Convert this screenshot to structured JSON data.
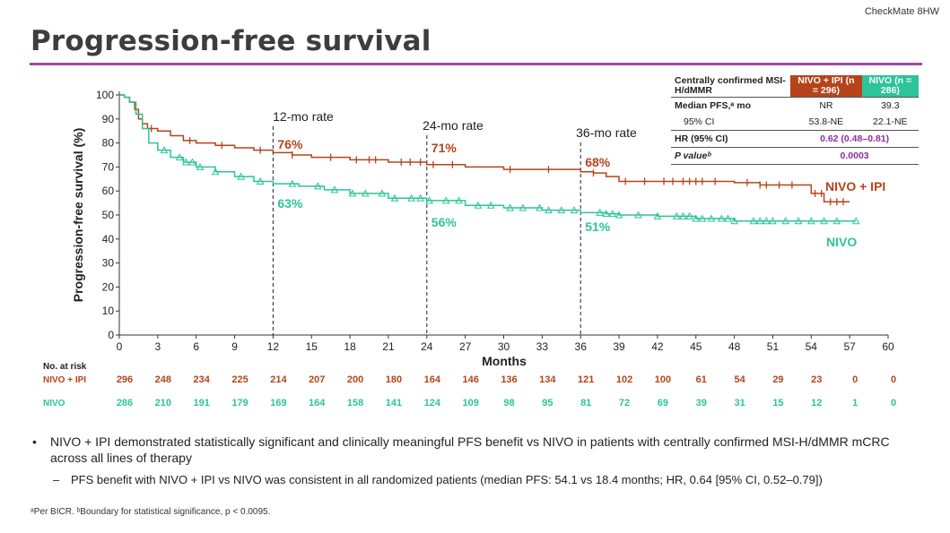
{
  "header": {
    "study_label": "CheckMate 8HW",
    "title": "Progression-free survival"
  },
  "colors": {
    "nivo_ipi": "#b5441a",
    "nivo": "#2cc49a",
    "accent": "#a04aa6",
    "stat_value": "#8d2fa0"
  },
  "stats_table": {
    "header_label": "Centrally confirmed MSI-H/dMMR",
    "col_nivo_ipi": "NIVO + IPI (n = 296)",
    "col_nivo": "NIVO (n = 286)",
    "median_label": "Median PFS,ᵃ mo",
    "median_nivo_ipi": "NR",
    "median_nivo": "39.3",
    "ci_label": "95% CI",
    "ci_nivo_ipi": "53.8-NE",
    "ci_nivo": "22.1-NE",
    "hr_label": "HR (95% CI)",
    "hr_value": "0.62 (0.48–0.81)",
    "p_label": "P valueᵇ",
    "p_value": "0.0003"
  },
  "chart_data": {
    "type": "line",
    "ylabel": "Progression-free survival (%)",
    "xlabel": "Months",
    "xlim": [
      0,
      60
    ],
    "ylim": [
      0,
      100
    ],
    "xticks": [
      0,
      3,
      6,
      9,
      12,
      15,
      18,
      21,
      24,
      27,
      30,
      33,
      36,
      39,
      42,
      45,
      48,
      51,
      54,
      57,
      60
    ],
    "yticks": [
      0,
      10,
      20,
      30,
      40,
      50,
      60,
      70,
      80,
      90,
      100
    ],
    "series": [
      {
        "name": "NIVO + IPI",
        "color": "#b5441a",
        "marker": "tick",
        "x": [
          0,
          0.4,
          0.8,
          1.2,
          1.5,
          1.8,
          2.2,
          3,
          4,
          5,
          6,
          7.5,
          9,
          10.5,
          12,
          13.5,
          15,
          18,
          21,
          24,
          27,
          30,
          33,
          36,
          37,
          38,
          39,
          42,
          45,
          48,
          50,
          53,
          54,
          55,
          57
        ],
        "y": [
          100,
          99,
          97,
          94,
          90,
          88,
          86,
          85,
          83,
          81,
          80,
          79,
          78,
          77,
          76,
          75,
          74,
          73,
          72,
          71,
          70,
          69,
          69,
          68,
          67.5,
          66,
          64,
          64,
          64,
          63.5,
          62.5,
          62.5,
          59,
          55.5,
          55.5
        ],
        "censor_x": [
          2.5,
          5.5,
          8,
          11,
          13.5,
          16.5,
          18.5,
          19.5,
          20,
          22,
          22.7,
          23.5,
          24.5,
          26,
          30.5,
          33.5,
          37,
          39.5,
          41,
          42.5,
          43.2,
          44,
          44.5,
          45,
          45.5,
          46.5,
          49,
          50,
          50.5,
          51.5,
          52.5,
          54.3,
          54.8,
          55.5,
          56,
          56.5
        ]
      },
      {
        "name": "NIVO",
        "color": "#2cc49a",
        "marker": "triangle",
        "x": [
          0,
          0.4,
          0.8,
          1.3,
          1.8,
          2.3,
          3,
          4,
          5,
          6,
          7.5,
          9,
          10.5,
          12,
          14,
          16,
          18,
          21,
          24,
          27,
          30,
          33,
          36,
          38,
          39,
          42,
          45,
          48,
          51,
          54,
          57.5
        ],
        "y": [
          100,
          99,
          97,
          92,
          86,
          80,
          77,
          74,
          72,
          70,
          68,
          66,
          64,
          63,
          62,
          60.5,
          59,
          57,
          56,
          54,
          53,
          52,
          51,
          50.5,
          50,
          49.5,
          48.5,
          47.5,
          47.5,
          47.5,
          47.5
        ],
        "censor_x": [
          3.5,
          4.7,
          5.2,
          5.7,
          6.3,
          7.5,
          9.5,
          11,
          13.5,
          15.5,
          16.8,
          18.2,
          19.2,
          20.5,
          21.5,
          22.8,
          23.5,
          24.2,
          25.5,
          26.5,
          28,
          29,
          30.5,
          31.5,
          32.8,
          33.5,
          34.5,
          35.5,
          37.5,
          38,
          38.5,
          39,
          40.5,
          42,
          43.5,
          44,
          44.5,
          45,
          45.5,
          46.2,
          47,
          47.5,
          48,
          49.5,
          50,
          50.5,
          51,
          52,
          53,
          54,
          55,
          56,
          57.5
        ]
      }
    ],
    "annotations": [
      {
        "x": 12,
        "label": "12-mo rate",
        "nivo_ipi": "76%",
        "nivo": "63%"
      },
      {
        "x": 24,
        "label": "24-mo rate",
        "nivo_ipi": "71%",
        "nivo": "56%"
      },
      {
        "x": 36,
        "label": "36-mo rate",
        "nivo_ipi": "68%",
        "nivo": "51%"
      }
    ],
    "series_labels": {
      "nivo_ipi": "NIVO + IPI",
      "nivo": "NIVO"
    },
    "at_risk": {
      "title": "No. at risk",
      "rows": [
        {
          "name": "NIVO + IPI",
          "values": [
            "296",
            "248",
            "234",
            "225",
            "214",
            "207",
            "200",
            "180",
            "164",
            "146",
            "136",
            "134",
            "121",
            "102",
            "100",
            "61",
            "54",
            "29",
            "23",
            "0",
            "0"
          ]
        },
        {
          "name": "NIVO",
          "values": [
            "286",
            "210",
            "191",
            "179",
            "169",
            "164",
            "158",
            "141",
            "124",
            "109",
            "98",
            "95",
            "81",
            "72",
            "69",
            "39",
            "31",
            "15",
            "12",
            "1",
            "0"
          ]
        }
      ]
    }
  },
  "bullets": {
    "main": "NIVO + IPI demonstrated statistically significant and clinically meaningful PFS benefit vs NIVO in patients with centrally confirmed MSI-H/dMMR mCRC across all lines of therapy",
    "sub": "PFS benefit with NIVO + IPI vs NIVO was consistent in all randomized patients (median PFS: 54.1 vs 18.4 months; HR, 0.64 [95% CI, 0.52–0.79])"
  },
  "footnote": "ᵃPer BICR. ᵇBoundary for statistical significance, p < 0.0095."
}
